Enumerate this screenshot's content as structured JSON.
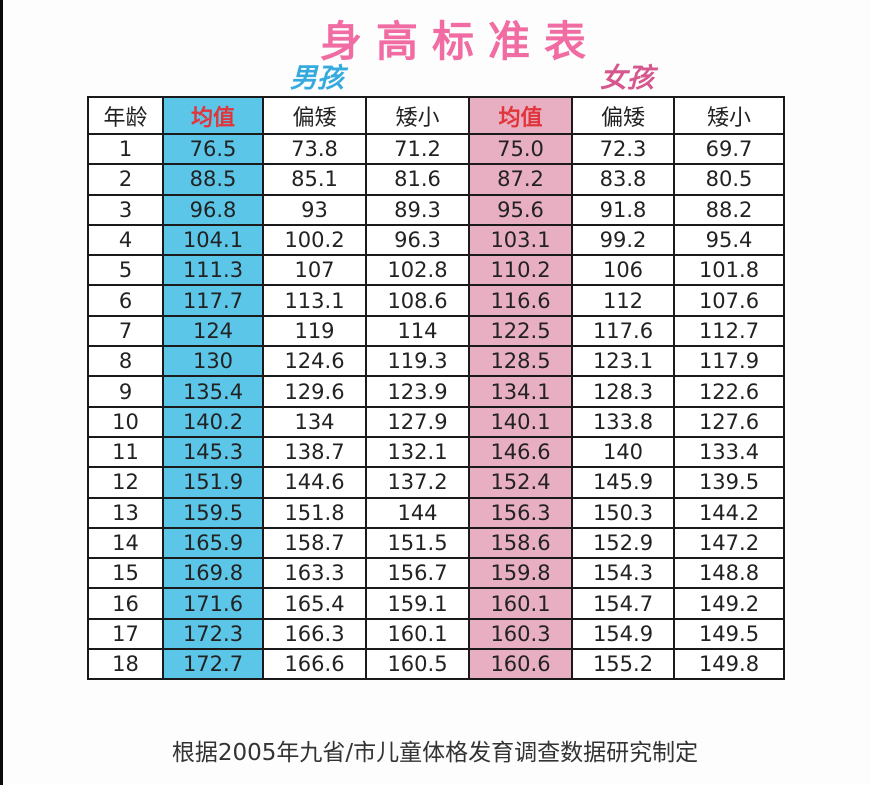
{
  "chart_data": {
    "type": "table",
    "title": "身高标准表",
    "column_groups": [
      {
        "id": "boys",
        "label": "男孩"
      },
      {
        "id": "girls",
        "label": "女孩"
      }
    ],
    "headers": [
      "年龄",
      "均值",
      "偏矮",
      "矮小",
      "均值",
      "偏矮",
      "矮小"
    ],
    "rows": [
      [
        "1",
        "76.5",
        "73.8",
        "71.2",
        "75.0",
        "72.3",
        "69.7"
      ],
      [
        "2",
        "88.5",
        "85.1",
        "81.6",
        "87.2",
        "83.8",
        "80.5"
      ],
      [
        "3",
        "96.8",
        "93",
        "89.3",
        "95.6",
        "91.8",
        "88.2"
      ],
      [
        "4",
        "104.1",
        "100.2",
        "96.3",
        "103.1",
        "99.2",
        "95.4"
      ],
      [
        "5",
        "111.3",
        "107",
        "102.8",
        "110.2",
        "106",
        "101.8"
      ],
      [
        "6",
        "117.7",
        "113.1",
        "108.6",
        "116.6",
        "112",
        "107.6"
      ],
      [
        "7",
        "124",
        "119",
        "114",
        "122.5",
        "117.6",
        "112.7"
      ],
      [
        "8",
        "130",
        "124.6",
        "119.3",
        "128.5",
        "123.1",
        "117.9"
      ],
      [
        "9",
        "135.4",
        "129.6",
        "123.9",
        "134.1",
        "128.3",
        "122.6"
      ],
      [
        "10",
        "140.2",
        "134",
        "127.9",
        "140.1",
        "133.8",
        "127.6"
      ],
      [
        "11",
        "145.3",
        "138.7",
        "132.1",
        "146.6",
        "140",
        "133.4"
      ],
      [
        "12",
        "151.9",
        "144.6",
        "137.2",
        "152.4",
        "145.9",
        "139.5"
      ],
      [
        "13",
        "159.5",
        "151.8",
        "144",
        "156.3",
        "150.3",
        "144.2"
      ],
      [
        "14",
        "165.9",
        "158.7",
        "151.5",
        "158.6",
        "152.9",
        "147.2"
      ],
      [
        "15",
        "169.8",
        "163.3",
        "156.7",
        "159.8",
        "154.3",
        "148.8"
      ],
      [
        "16",
        "171.6",
        "165.4",
        "159.1",
        "160.1",
        "154.7",
        "149.2"
      ],
      [
        "17",
        "172.3",
        "166.3",
        "160.1",
        "160.3",
        "154.9",
        "149.5"
      ],
      [
        "18",
        "172.7",
        "166.6",
        "160.5",
        "160.6",
        "155.2",
        "149.8"
      ]
    ],
    "footnote": "根据2005年九省/市儿童体格发育调查数据研究制定"
  },
  "colors": {
    "boys_mean_bg": "#5bc6e8",
    "girls_mean_bg": "#e8aec2",
    "mean_header_text": "#e1353c",
    "title_pink": "#f06ca2",
    "boys_label": "#35aadf",
    "girls_label": "#d6568e",
    "grid_border": "#1a1a1a"
  }
}
